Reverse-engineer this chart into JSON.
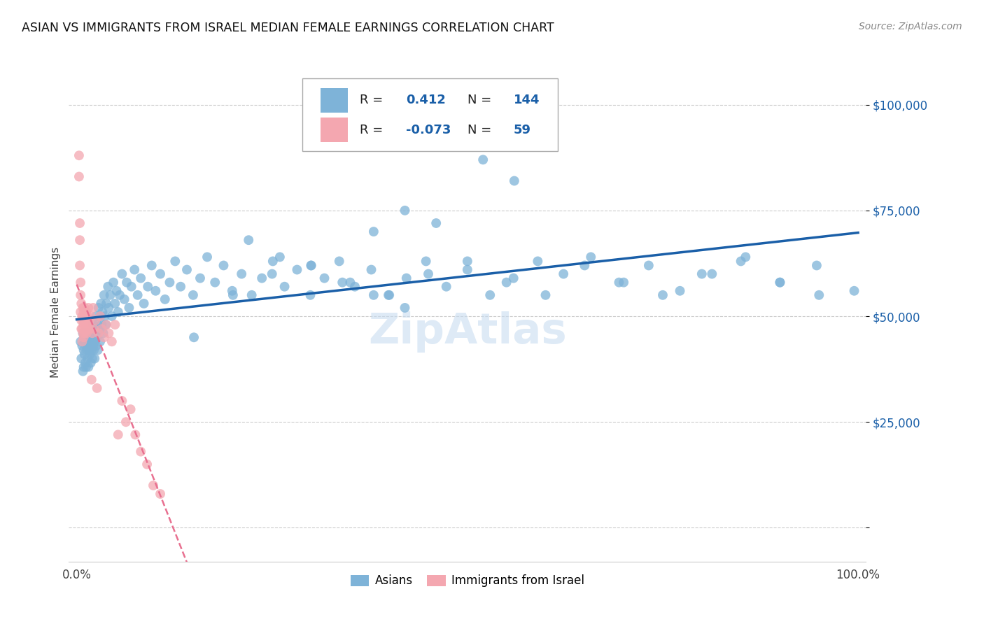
{
  "title": "ASIAN VS IMMIGRANTS FROM ISRAEL MEDIAN FEMALE EARNINGS CORRELATION CHART",
  "source": "Source: ZipAtlas.com",
  "ylabel": "Median Female Earnings",
  "r_asian": 0.412,
  "n_asian": 144,
  "r_israel": -0.073,
  "n_israel": 59,
  "blue_color": "#7EB3D8",
  "pink_color": "#F4A7B0",
  "line_blue": "#1A5FA8",
  "line_pink": "#E87090",
  "asian_x": [
    0.5,
    0.6,
    0.7,
    0.8,
    0.8,
    0.9,
    0.9,
    1.0,
    1.0,
    1.1,
    1.1,
    1.2,
    1.2,
    1.3,
    1.3,
    1.4,
    1.4,
    1.5,
    1.5,
    1.6,
    1.6,
    1.7,
    1.7,
    1.8,
    1.8,
    1.9,
    1.9,
    2.0,
    2.0,
    2.1,
    2.1,
    2.2,
    2.2,
    2.3,
    2.3,
    2.4,
    2.5,
    2.5,
    2.6,
    2.7,
    2.7,
    2.8,
    2.9,
    3.0,
    3.0,
    3.1,
    3.2,
    3.3,
    3.4,
    3.5,
    3.6,
    3.7,
    3.8,
    4.0,
    4.1,
    4.3,
    4.5,
    4.7,
    4.9,
    5.1,
    5.3,
    5.5,
    5.8,
    6.1,
    6.4,
    6.7,
    7.0,
    7.4,
    7.8,
    8.2,
    8.6,
    9.1,
    9.6,
    10.1,
    10.7,
    11.3,
    11.9,
    12.6,
    13.3,
    14.1,
    14.9,
    15.8,
    16.7,
    17.7,
    18.8,
    19.9,
    21.1,
    22.4,
    23.7,
    25.1,
    26.6,
    28.2,
    29.9,
    31.7,
    33.6,
    35.6,
    37.7,
    39.9,
    42.2,
    44.7,
    47.3,
    50.0,
    52.9,
    55.9,
    59.0,
    62.3,
    65.8,
    69.4,
    73.2,
    77.2,
    81.3,
    85.6,
    90.0,
    94.7,
    99.5,
    15.0,
    20.0,
    25.0,
    30.0,
    35.0,
    40.0,
    45.0,
    50.0,
    55.0,
    60.0,
    65.0,
    70.0,
    75.0,
    80.0,
    85.0,
    90.0,
    95.0,
    48.0,
    52.0,
    56.0,
    38.0,
    42.0,
    46.0,
    22.0,
    26.0,
    30.0,
    34.0,
    38.0,
    42.0
  ],
  "asian_y": [
    44000,
    40000,
    43000,
    37000,
    46000,
    42000,
    38000,
    45000,
    41000,
    39000,
    44000,
    43000,
    38000,
    42000,
    46000,
    40000,
    45000,
    43000,
    38000,
    42000,
    46000,
    41000,
    44000,
    39000,
    43000,
    42000,
    46000,
    44000,
    40000,
    43000,
    48000,
    42000,
    46000,
    44000,
    40000,
    47000,
    43000,
    50000,
    45000,
    48000,
    42000,
    52000,
    47000,
    50000,
    44000,
    53000,
    48000,
    51000,
    46000,
    55000,
    50000,
    48000,
    53000,
    57000,
    52000,
    55000,
    50000,
    58000,
    53000,
    56000,
    51000,
    55000,
    60000,
    54000,
    58000,
    52000,
    57000,
    61000,
    55000,
    59000,
    53000,
    57000,
    62000,
    56000,
    60000,
    54000,
    58000,
    63000,
    57000,
    61000,
    55000,
    59000,
    64000,
    58000,
    62000,
    56000,
    60000,
    55000,
    59000,
    63000,
    57000,
    61000,
    55000,
    59000,
    63000,
    57000,
    61000,
    55000,
    59000,
    63000,
    57000,
    61000,
    55000,
    59000,
    63000,
    60000,
    64000,
    58000,
    62000,
    56000,
    60000,
    64000,
    58000,
    62000,
    56000,
    45000,
    55000,
    60000,
    62000,
    58000,
    55000,
    60000,
    63000,
    58000,
    55000,
    62000,
    58000,
    55000,
    60000,
    63000,
    58000,
    55000,
    91000,
    87000,
    82000,
    70000,
    75000,
    72000,
    68000,
    64000,
    62000,
    58000,
    55000,
    52000
  ],
  "israel_x": [
    0.3,
    0.3,
    0.4,
    0.4,
    0.4,
    0.5,
    0.5,
    0.5,
    0.6,
    0.6,
    0.6,
    0.7,
    0.7,
    0.7,
    0.8,
    0.8,
    0.8,
    0.9,
    0.9,
    0.9,
    1.0,
    1.0,
    1.0,
    1.1,
    1.1,
    1.2,
    1.2,
    1.3,
    1.3,
    1.4,
    1.4,
    1.5,
    1.5,
    1.6,
    1.7,
    1.8,
    1.9,
    2.0,
    2.1,
    2.2,
    2.4,
    2.6,
    2.8,
    3.0,
    3.2,
    3.5,
    3.8,
    4.1,
    4.5,
    4.9,
    5.3,
    5.8,
    6.3,
    6.9,
    7.5,
    8.2,
    9.0,
    9.8,
    10.7
  ],
  "israel_y": [
    88000,
    83000,
    72000,
    68000,
    62000,
    58000,
    55000,
    51000,
    53000,
    49000,
    47000,
    50000,
    47000,
    44000,
    52000,
    49000,
    46000,
    51000,
    48000,
    45000,
    52000,
    49000,
    46000,
    50000,
    47000,
    51000,
    48000,
    49000,
    46000,
    50000,
    47000,
    52000,
    48000,
    49000,
    47000,
    50000,
    35000,
    46000,
    52000,
    47000,
    49000,
    33000,
    46000,
    50000,
    47000,
    45000,
    48000,
    46000,
    44000,
    48000,
    22000,
    30000,
    25000,
    28000,
    22000,
    18000,
    15000,
    10000,
    8000
  ]
}
